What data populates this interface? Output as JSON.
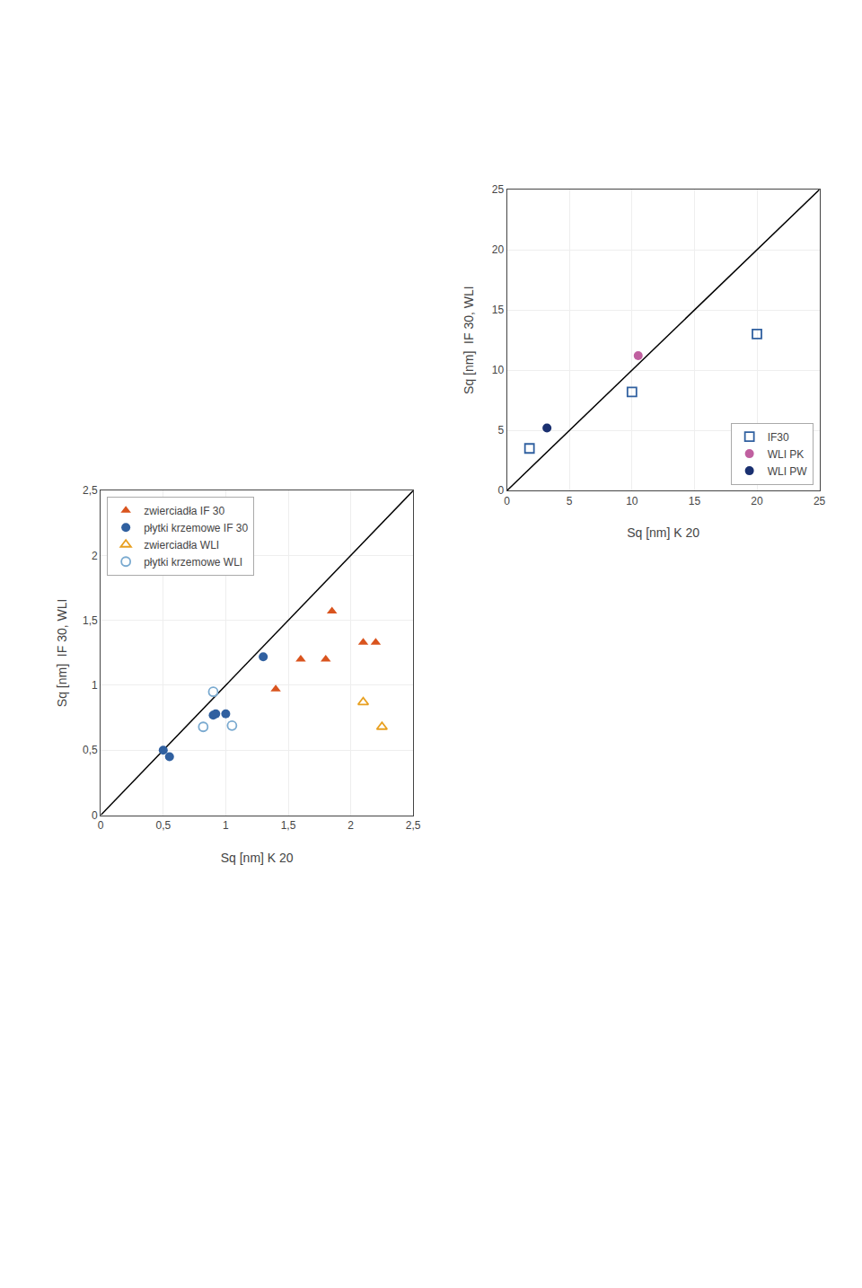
{
  "chart_data": [
    {
      "type": "scatter",
      "x_label": "Sq [nm] K 20",
      "y_label": "Sq [nm]  IF 30, WLI",
      "xlim": [
        0,
        2.5
      ],
      "ylim": [
        0,
        2.5
      ],
      "xticks": [
        0,
        {
          "value": 0.5,
          "label": "0,5"
        },
        1,
        {
          "value": 1.5,
          "label": "1,5"
        },
        2,
        {
          "value": 2.5,
          "label": "2,5"
        }
      ],
      "yticks": [
        0,
        {
          "value": 0.5,
          "label": "0,5"
        },
        1,
        {
          "value": 1.5,
          "label": "1,5"
        },
        2,
        {
          "value": 2.5,
          "label": "2,5"
        }
      ],
      "grid": true,
      "legend": "upper left",
      "series": [
        {
          "type": "line",
          "line_style": "solid",
          "color": "#000000",
          "x": [
            0,
            2.5
          ],
          "values": [
            0,
            2.5
          ]
        },
        {
          "name": "zwierciadła IF 30",
          "marker": "triangle-up",
          "color": "#D9541E",
          "x": [
            1.4,
            1.6,
            1.8,
            1.85,
            2.1,
            2.2
          ],
          "values": [
            0.97,
            1.2,
            1.2,
            1.57,
            1.33,
            1.33
          ]
        },
        {
          "name": "płytki krzemowe IF 30",
          "marker": "circle",
          "color": "#3060A0",
          "x": [
            0.5,
            0.55,
            0.9,
            0.92,
            1.0,
            1.3
          ],
          "values": [
            0.5,
            0.45,
            0.77,
            0.78,
            0.78,
            1.22
          ]
        },
        {
          "name": "zwierciadła WLI",
          "marker": "triangle-up-open",
          "color": "#E8A020",
          "x": [
            2.1,
            2.25
          ],
          "values": [
            0.87,
            0.68
          ]
        },
        {
          "name": "płytki krzemowe WLI",
          "marker": "circle-open",
          "color": "#7AAAD0",
          "x": [
            0.82,
            0.9,
            1.05
          ],
          "values": [
            0.68,
            0.95,
            0.69
          ]
        }
      ]
    },
    {
      "type": "scatter",
      "x_label": "Sq [nm] K 20",
      "y_label": "Sq [nm]  IF 30, WLI",
      "xlim": [
        0,
        25
      ],
      "ylim": [
        0,
        25
      ],
      "xticks": [
        0,
        5,
        10,
        15,
        20,
        25
      ],
      "yticks": [
        0,
        5,
        10,
        15,
        20,
        25
      ],
      "grid": true,
      "legend": "lower right",
      "series": [
        {
          "type": "line",
          "line_style": "solid",
          "color": "#000000",
          "x": [
            0,
            25
          ],
          "values": [
            0,
            25
          ]
        },
        {
          "name": "IF30",
          "marker": "square-open",
          "color": "#3060A0",
          "x": [
            1.8,
            10.0,
            20.0
          ],
          "values": [
            3.5,
            8.2,
            13.0
          ]
        },
        {
          "name": "WLI PK",
          "marker": "circle",
          "color": "#C060A0",
          "x": [
            10.5
          ],
          "values": [
            11.2
          ]
        },
        {
          "name": "WLI PW",
          "marker": "circle",
          "color": "#1A3070",
          "x": [
            3.2
          ],
          "values": [
            5.2
          ]
        }
      ]
    }
  ]
}
